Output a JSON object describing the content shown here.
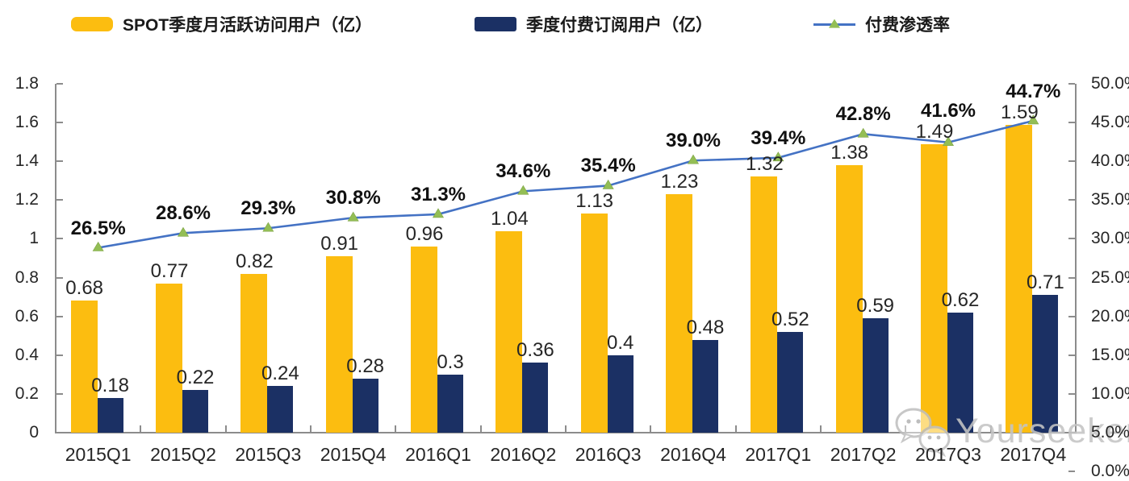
{
  "legend": {
    "items": [
      {
        "label": "SPOT季度月活跃访问用户（亿）",
        "swatch": "bar",
        "color": "#FCBD10"
      },
      {
        "label": "季度付费订阅用户（亿）",
        "swatch": "bar",
        "color": "#1B3064"
      },
      {
        "label": "付费渗透率",
        "swatch": "line",
        "color": "#4472C4",
        "marker_color": "#93BE55"
      }
    ]
  },
  "chart_data": {
    "type": "bar",
    "subtype": "combo-bar-line",
    "title": "",
    "grid": false,
    "legend_position": "top",
    "categories": [
      "2015Q1",
      "2015Q2",
      "2015Q3",
      "2015Q4",
      "2016Q1",
      "2016Q2",
      "2016Q3",
      "2016Q4",
      "2017Q1",
      "2017Q2",
      "2017Q3",
      "2017Q4"
    ],
    "series": [
      {
        "name": "SPOT季度月活跃访问用户（亿）",
        "type": "bar",
        "axis": "left",
        "color": "#FCBD10",
        "values": [
          0.68,
          0.77,
          0.82,
          0.91,
          0.96,
          1.04,
          1.13,
          1.23,
          1.32,
          1.38,
          1.49,
          1.59
        ],
        "labels": [
          "0.68",
          "0.77",
          "0.82",
          "0.91",
          "0.96",
          "1.04",
          "1.13",
          "1.23",
          "1.32",
          "1.38",
          "1.49",
          "1.59"
        ]
      },
      {
        "name": "季度付费订阅用户（亿）",
        "type": "bar",
        "axis": "left",
        "color": "#1B3064",
        "values": [
          0.18,
          0.22,
          0.24,
          0.28,
          0.3,
          0.36,
          0.4,
          0.48,
          0.52,
          0.59,
          0.62,
          0.71
        ],
        "labels": [
          "0.18",
          "0.22",
          "0.24",
          "0.28",
          "0.3",
          "0.36",
          "0.4",
          "0.48",
          "0.52",
          "0.59",
          "0.62",
          "0.71"
        ]
      },
      {
        "name": "付费渗透率",
        "type": "line",
        "axis": "right",
        "color": "#4472C4",
        "marker": "triangle",
        "marker_color": "#93BE55",
        "values": [
          26.5,
          28.6,
          29.3,
          30.8,
          31.3,
          34.6,
          35.4,
          39.0,
          39.4,
          42.8,
          41.6,
          44.7
        ],
        "labels": [
          "26.5%",
          "28.6%",
          "29.3%",
          "30.8%",
          "31.3%",
          "34.6%",
          "35.4%",
          "39.0%",
          "39.4%",
          "42.8%",
          "41.6%",
          "44.7%"
        ]
      }
    ],
    "left_axis": {
      "min": 0,
      "max": 1.8,
      "step": 0.2,
      "tick_labels": [
        "1.8",
        "1.6",
        "1.4",
        "1.2",
        "1",
        "0.8",
        "0.6",
        "0.4",
        "0.2",
        "0"
      ]
    },
    "right_axis": {
      "min": 0,
      "max": 50,
      "step": 5,
      "tick_labels": [
        "50.0%",
        "45.0%",
        "40.0%",
        "35.0%",
        "30.0%",
        "25.0%",
        "20.0%",
        "15.0%",
        "10.0%",
        "5.0%",
        "0.0%"
      ]
    }
  },
  "watermark": {
    "icon": "wechat-icon",
    "text": "Yourseeker",
    "color": "#c4c4c4"
  }
}
